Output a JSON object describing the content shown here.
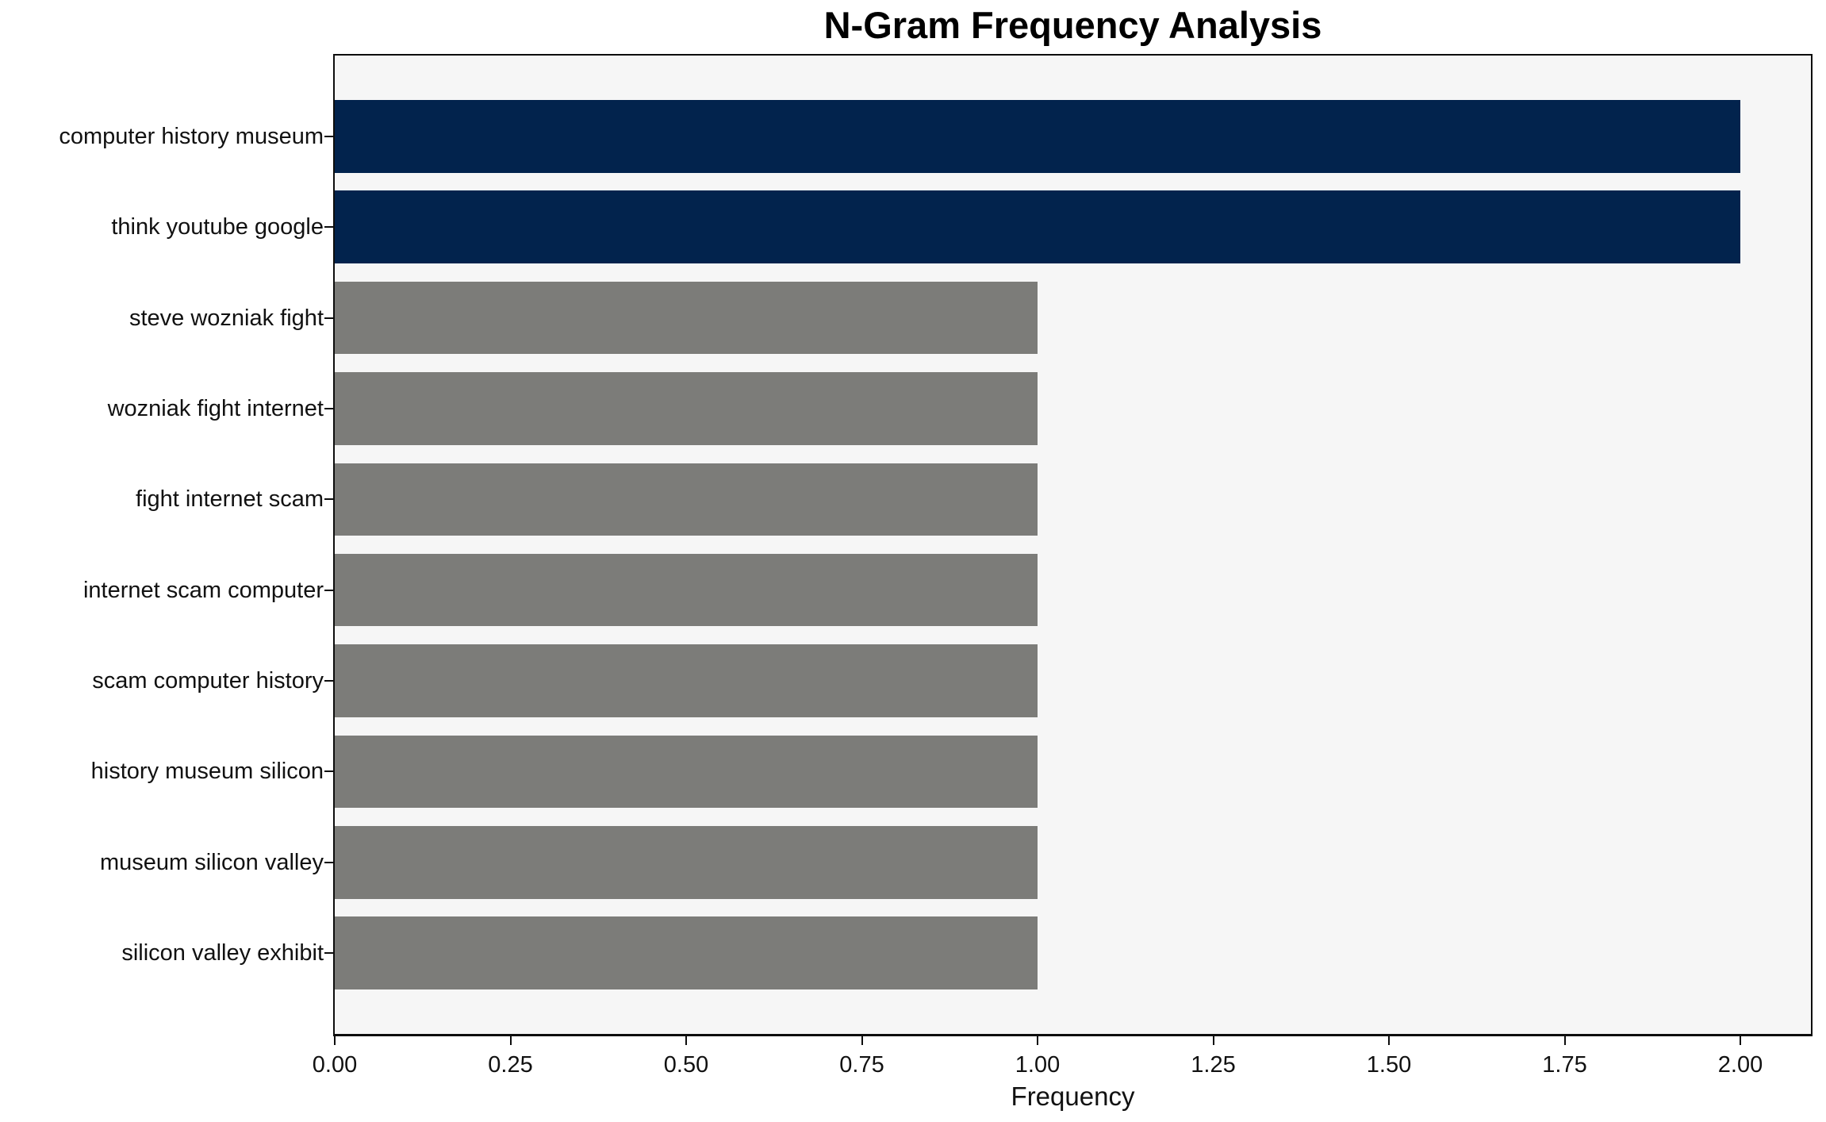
{
  "chart_data": {
    "type": "bar",
    "orientation": "horizontal",
    "title": "N-Gram Frequency Analysis",
    "xlabel": "Frequency",
    "ylabel": "",
    "categories": [
      "computer history museum",
      "think youtube google",
      "steve wozniak fight",
      "wozniak fight internet",
      "fight internet scam",
      "internet scam computer",
      "scam computer history",
      "history museum silicon",
      "museum silicon valley",
      "silicon valley exhibit"
    ],
    "values": [
      2,
      2,
      1,
      1,
      1,
      1,
      1,
      1,
      1,
      1
    ],
    "bar_colors": [
      "#02234d",
      "#02234d",
      "#7c7c79",
      "#7c7c79",
      "#7c7c79",
      "#7c7c79",
      "#7c7c79",
      "#7c7c79",
      "#7c7c79",
      "#7c7c79"
    ],
    "xlim": [
      0,
      2.1
    ],
    "xticks": [
      "0.00",
      "0.25",
      "0.50",
      "0.75",
      "1.00",
      "1.25",
      "1.50",
      "1.75",
      "2.00"
    ],
    "grid": false,
    "legend": false,
    "colors": {
      "highlight": "#02234d",
      "default_bar": "#7c7c79",
      "plot_background": "#f6f6f6",
      "figure_background": "#ffffff",
      "spine": "#0d0d0d",
      "text": "#111111"
    }
  }
}
